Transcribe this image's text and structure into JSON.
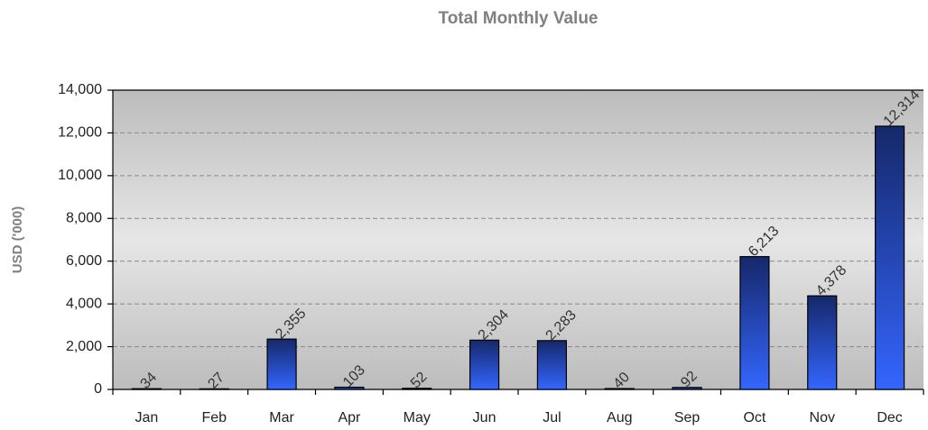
{
  "chart_data": {
    "type": "bar",
    "title": "Total Monthly Value",
    "y_label": "USD ('000)",
    "categories": [
      "Jan",
      "Feb",
      "Mar",
      "Apr",
      "May",
      "Jun",
      "Jul",
      "Aug",
      "Sep",
      "Oct",
      "Nov",
      "Dec"
    ],
    "values": [
      34,
      27,
      2355,
      103,
      52,
      2304,
      2283,
      40,
      92,
      6213,
      4378,
      12314
    ],
    "value_labels": [
      "34",
      "27",
      "2,355",
      "103",
      "52",
      "2,304",
      "2,283",
      "40",
      "92",
      "6,213",
      "4,378",
      "12,314"
    ],
    "color": "#3366ff",
    "ylim": [
      0,
      14000
    ],
    "yticks": [
      0,
      {
        "value": 2000,
        "label": "2,000"
      },
      {
        "value": 4000,
        "label": "4,000"
      },
      {
        "value": 6000,
        "label": "6,000"
      },
      {
        "value": 8000,
        "label": "8,000"
      },
      {
        "value": 10000,
        "label": "10,000"
      },
      {
        "value": 12000,
        "label": "12,000"
      },
      {
        "value": 14000,
        "label": "14,000"
      }
    ],
    "grid": true
  }
}
